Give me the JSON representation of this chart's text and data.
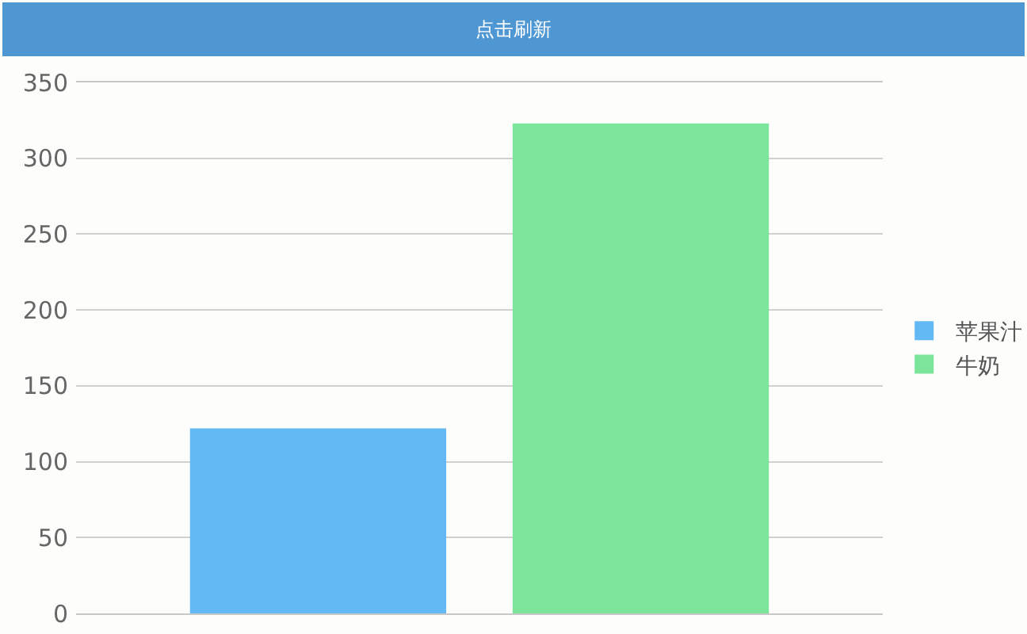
{
  "chart_data": {
    "type": "bar",
    "categories": [
      null
    ],
    "series": [
      {
        "name": "苹果汁",
        "color": "#63b9f4",
        "values": [
          122
        ]
      },
      {
        "name": "牛奶",
        "color": "#7ae59b",
        "values": [
          323
        ]
      }
    ],
    "ylim": [
      0,
      350
    ],
    "yticks": [
      0,
      50,
      100,
      150,
      200,
      250,
      300,
      350
    ],
    "grid": "y",
    "legend": "right",
    "tick_labels": "y",
    "annotations": [
      "点击刷新"
    ]
  }
}
